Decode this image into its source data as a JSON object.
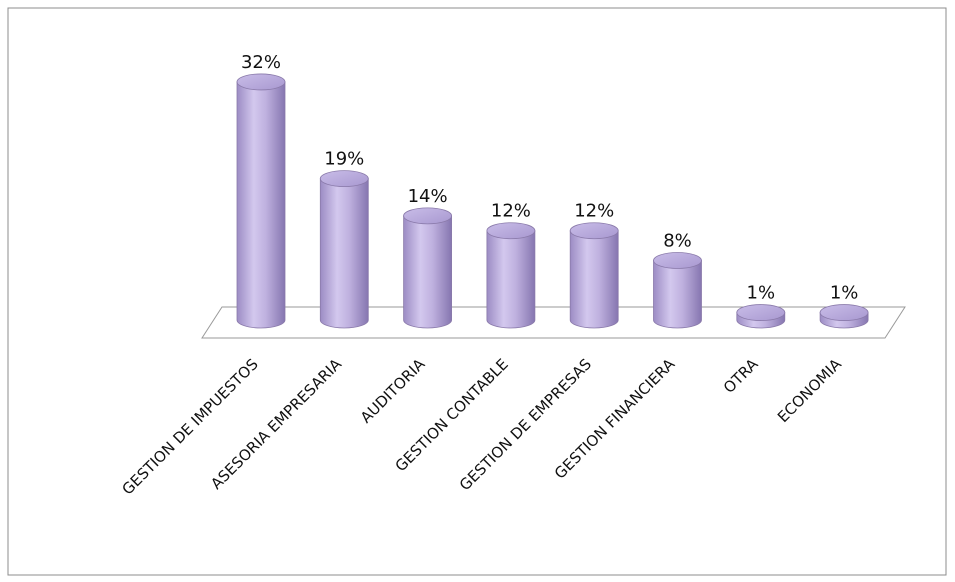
{
  "chart_data": {
    "type": "bar",
    "style": "3d-cylinder",
    "categories": [
      "GESTION DE IMPUESTOS",
      "ASESORIA EMPRESARIA",
      "AUDITORIA",
      "GESTION CONTABLE",
      "GESTION DE EMPRESAS",
      "GESTION FINANCIERA",
      "OTRA",
      "ECONOMIA"
    ],
    "values": [
      32,
      19,
      14,
      12,
      12,
      8,
      1,
      1
    ],
    "value_labels": [
      "32%",
      "19%",
      "14%",
      "12%",
      "12%",
      "8%",
      "1%",
      "1%"
    ],
    "unit": "%",
    "title": "",
    "xlabel": "",
    "ylabel": "",
    "ylim": [
      0,
      35
    ],
    "grid": false,
    "legend": "none",
    "bar_color": "#b8a9d9",
    "bar_edge_color": "#8a7aaa",
    "floor_color": "#ffffff",
    "floor_edge_color": "#9a9a9a"
  }
}
